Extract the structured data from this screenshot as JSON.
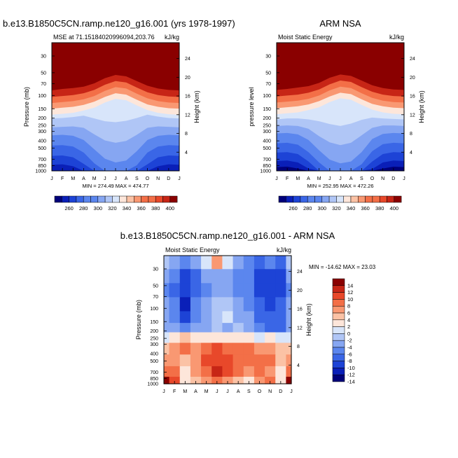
{
  "colormap": {
    "mse_colors": [
      "#00007a",
      "#0a1fb8",
      "#1d43d6",
      "#3a66e6",
      "#5b86ee",
      "#86a6f2",
      "#b0c6f6",
      "#d8e5fa",
      "#fde6da",
      "#fbc2a5",
      "#f99872",
      "#f36f47",
      "#e8482a",
      "#c72516",
      "#8a0000"
    ],
    "diff_colors": [
      "#00007a",
      "#0a1fb8",
      "#1d43d6",
      "#3a66e6",
      "#5b86ee",
      "#86a6f2",
      "#b0c6f6",
      "#d8e5fa",
      "#fde6da",
      "#fbc2a5",
      "#f99872",
      "#f36f47",
      "#e8482a",
      "#c72516",
      "#8a0000"
    ]
  },
  "chart_data": [
    {
      "type": "heatmap",
      "title": "b.e13.B1850C5CN.ramp.ne120_g16.001 (yrs 1978-1997)",
      "left_label": "MSE at 71.15184020996094,203.76",
      "right_label": "kJ/kg",
      "ylabel": "Pressure (mb)",
      "y2label": "Height (km)",
      "months": [
        "J",
        "F",
        "M",
        "A",
        "M",
        "J",
        "J",
        "A",
        "S",
        "O",
        "N",
        "D",
        "J"
      ],
      "pressure_ticks": [
        "30",
        "50",
        "70",
        "100",
        "150",
        "200",
        "250",
        "300",
        "400",
        "500",
        "700",
        "850",
        "1000"
      ],
      "height_ticks": [
        "24",
        "20",
        "16",
        "12",
        "8",
        "4"
      ],
      "minmax": "MIN = 274.49 MAX = 474.77",
      "legend_labels": [
        "260",
        "280",
        "300",
        "320",
        "340",
        "360",
        "380",
        "400"
      ],
      "boundaries_km": [
        {
          "level": 405,
          "values": [
            19.5,
            19.8,
            19.9,
            20.1,
            20.5,
            21.2,
            21.8,
            21.5,
            20.8,
            20.2,
            19.9,
            19.7,
            19.5
          ]
        },
        {
          "level": 390,
          "values": [
            17.2,
            17.5,
            17.7,
            18.0,
            18.7,
            19.8,
            20.5,
            20.2,
            19.2,
            18.2,
            17.6,
            17.3,
            17.2
          ]
        },
        {
          "level": 375,
          "values": [
            15.8,
            16.0,
            16.2,
            16.6,
            17.3,
            18.4,
            19.2,
            18.9,
            17.8,
            16.8,
            16.2,
            15.9,
            15.8
          ]
        },
        {
          "level": 360,
          "values": [
            14.5,
            14.7,
            14.9,
            15.3,
            16.0,
            17.1,
            17.9,
            17.6,
            16.5,
            15.5,
            14.9,
            14.6,
            14.5
          ]
        },
        {
          "level": 345,
          "values": [
            13.3,
            13.5,
            13.7,
            14.1,
            14.8,
            15.8,
            16.6,
            16.3,
            15.2,
            14.2,
            13.7,
            13.4,
            13.3
          ]
        },
        {
          "level": 330,
          "values": [
            12.0,
            12.2,
            12.4,
            12.9,
            13.5,
            14.6,
            15.4,
            15.1,
            14.0,
            13.0,
            12.4,
            12.1,
            12.0
          ]
        },
        {
          "level": 320,
          "values": [
            11.2,
            11.3,
            11.5,
            11.8,
            11.2,
            10.6,
            10.4,
            10.7,
            11.3,
            12.0,
            11.6,
            11.3,
            11.2
          ]
        },
        {
          "level": 310,
          "values": [
            9.3,
            9.4,
            9.5,
            9.2,
            7.8,
            6.5,
            6.0,
            6.4,
            7.7,
            9.2,
            9.5,
            9.4,
            9.3
          ]
        },
        {
          "level": 300,
          "values": [
            7.6,
            7.7,
            7.5,
            6.6,
            4.6,
            2.6,
            1.8,
            2.2,
            4.2,
            6.6,
            7.5,
            7.7,
            7.6
          ]
        },
        {
          "level": 290,
          "values": [
            5.4,
            5.5,
            5.2,
            3.9,
            1.6,
            0,
            0,
            0,
            1.2,
            3.9,
            5.2,
            5.5,
            5.4
          ]
        },
        {
          "level": 280,
          "values": [
            3.2,
            3.3,
            2.9,
            1.5,
            0,
            0,
            0,
            0,
            0,
            1.4,
            2.9,
            3.3,
            3.2
          ]
        },
        {
          "level": 270,
          "values": [
            1.3,
            1.4,
            1.0,
            0,
            0,
            0,
            0,
            0,
            0,
            0,
            1.0,
            1.4,
            1.3
          ]
        }
      ]
    },
    {
      "type": "heatmap",
      "title": "ARM NSA",
      "left_label": "Moist Static Energy",
      "right_label": "kJ/kg",
      "ylabel": "pressure level",
      "y2label": "Height (km)",
      "months": [
        "J",
        "F",
        "M",
        "A",
        "M",
        "J",
        "J",
        "A",
        "S",
        "O",
        "N",
        "D",
        "J"
      ],
      "pressure_ticks": [
        "30",
        "50",
        "70",
        "100",
        "150",
        "200",
        "250",
        "300",
        "400",
        "500",
        "700",
        "850",
        "1000"
      ],
      "height_ticks": [
        "24",
        "20",
        "16",
        "12",
        "8",
        "4"
      ],
      "minmax": "MIN = 252.95 MAX = 472.26",
      "legend_labels": [
        "260",
        "280",
        "300",
        "320",
        "340",
        "360",
        "380",
        "400"
      ],
      "boundaries_km": [
        {
          "level": 405,
          "values": [
            19.6,
            19.8,
            20.0,
            20.2,
            20.6,
            21.3,
            21.9,
            21.6,
            20.9,
            20.3,
            20.0,
            19.8,
            19.6
          ]
        },
        {
          "level": 390,
          "values": [
            17.3,
            17.5,
            17.8,
            18.1,
            18.8,
            19.9,
            20.6,
            20.3,
            19.3,
            18.3,
            17.7,
            17.4,
            17.3
          ]
        },
        {
          "level": 375,
          "values": [
            15.9,
            16.1,
            16.3,
            16.7,
            17.4,
            18.5,
            19.3,
            19.0,
            17.9,
            16.9,
            16.3,
            16.0,
            15.9
          ]
        },
        {
          "level": 360,
          "values": [
            14.6,
            14.8,
            15.0,
            15.4,
            16.1,
            17.2,
            18.0,
            17.7,
            16.6,
            15.6,
            15.0,
            14.7,
            14.6
          ]
        },
        {
          "level": 345,
          "values": [
            13.4,
            13.6,
            13.8,
            14.2,
            14.9,
            15.9,
            16.7,
            16.4,
            15.3,
            14.3,
            13.8,
            13.5,
            13.4
          ]
        },
        {
          "level": 330,
          "values": [
            12.1,
            12.3,
            12.5,
            13.0,
            13.6,
            14.7,
            15.5,
            15.2,
            14.1,
            13.1,
            12.5,
            12.2,
            12.1
          ]
        },
        {
          "level": 320,
          "values": [
            11.0,
            11.2,
            11.2,
            11.0,
            10.6,
            10.0,
            9.6,
            10.1,
            10.9,
            11.4,
            11.2,
            11.1,
            11.0
          ]
        },
        {
          "level": 310,
          "values": [
            9.6,
            9.7,
            9.6,
            9.0,
            7.4,
            6.1,
            5.5,
            6.0,
            7.6,
            9.2,
            9.7,
            9.7,
            9.6
          ]
        },
        {
          "level": 300,
          "values": [
            8.0,
            8.1,
            7.8,
            6.6,
            4.4,
            2.4,
            1.6,
            2.0,
            4.0,
            6.8,
            7.9,
            8.1,
            8.0
          ]
        },
        {
          "level": 290,
          "values": [
            5.9,
            6.0,
            5.6,
            4.0,
            1.8,
            0,
            0,
            0,
            1.4,
            4.2,
            5.7,
            6.0,
            5.9
          ]
        },
        {
          "level": 280,
          "values": [
            3.9,
            4.0,
            3.6,
            2.0,
            0,
            0,
            0,
            0,
            0,
            2.0,
            3.6,
            4.0,
            3.9
          ]
        },
        {
          "level": 270,
          "values": [
            2.1,
            2.2,
            1.8,
            0.5,
            0,
            0,
            0,
            0,
            0,
            0.4,
            1.8,
            2.2,
            2.1
          ]
        },
        {
          "level": 260,
          "values": [
            0.8,
            0.9,
            0.5,
            0,
            0,
            0,
            0,
            0,
            0,
            0,
            0.5,
            0.9,
            0.8
          ]
        }
      ]
    },
    {
      "type": "heatmap",
      "title": "b.e13.B1850C5CN.ramp.ne120_g16.001 - ARM NSA",
      "left_label": "Moist Static Energy",
      "right_label": "kJ/kg",
      "ylabel": "Pressure (mb)",
      "y2label": "Height (km)",
      "months": [
        "J",
        "F",
        "M",
        "A",
        "M",
        "J",
        "J",
        "A",
        "S",
        "O",
        "N",
        "D",
        "J"
      ],
      "pressure_ticks": [
        "30",
        "50",
        "70",
        "100",
        "150",
        "200",
        "250",
        "300",
        "400",
        "500",
        "700",
        "850",
        "1000"
      ],
      "height_ticks": [
        "24",
        "20",
        "16",
        "12",
        "8",
        "4"
      ],
      "minmax": "MIN = -14.62 MAX =  23.03",
      "legend_labels": [
        "14",
        "12",
        "10",
        "8",
        "6",
        "4",
        "2",
        "0",
        "-2",
        "-4",
        "-6",
        "-8",
        "-10",
        "-12",
        "-14"
      ],
      "grid_rows_km": [
        26,
        23,
        20,
        17,
        14,
        12,
        10,
        7.5,
        5,
        2.5,
        0.5
      ],
      "grid": [
        [
          -2,
          -4,
          -6,
          -4,
          1,
          6,
          0,
          -4,
          -5,
          -7,
          -6,
          -7,
          -2
        ],
        [
          -4,
          -6,
          -9,
          -7,
          -4,
          -3,
          -4,
          -6,
          -6,
          -9,
          -10,
          -9,
          -4
        ],
        [
          -5,
          -7,
          -10,
          -8,
          -5,
          -4,
          -4,
          -5,
          -5,
          -9,
          -10,
          -9,
          -5
        ],
        [
          -4,
          -6,
          -11,
          -6,
          -4,
          -2,
          -1,
          -4,
          -5,
          -8,
          -9,
          -8,
          -4
        ],
        [
          -4,
          -6,
          -9,
          -5,
          -3,
          -1,
          0,
          -3,
          -4,
          -8,
          -8,
          -8,
          -4
        ],
        [
          -3,
          -4,
          -6,
          -3,
          -3,
          -2,
          -3,
          -2,
          -3,
          -6,
          -7,
          -7,
          -3
        ],
        [
          1,
          3,
          4,
          3,
          2,
          3,
          3,
          2,
          3,
          1,
          2,
          1,
          1
        ],
        [
          5,
          7,
          8,
          6,
          9,
          10,
          9,
          8,
          9,
          7,
          6,
          5,
          5
        ],
        [
          7,
          7,
          5,
          7,
          10,
          11,
          10,
          8,
          9,
          9,
          8,
          4,
          7
        ],
        [
          9,
          8,
          3,
          6,
          9,
          12,
          10,
          9,
          7,
          8,
          7,
          3,
          9
        ],
        [
          14,
          11,
          2,
          5,
          6,
          9,
          6,
          4,
          3,
          7,
          8,
          3,
          14
        ]
      ]
    }
  ]
}
